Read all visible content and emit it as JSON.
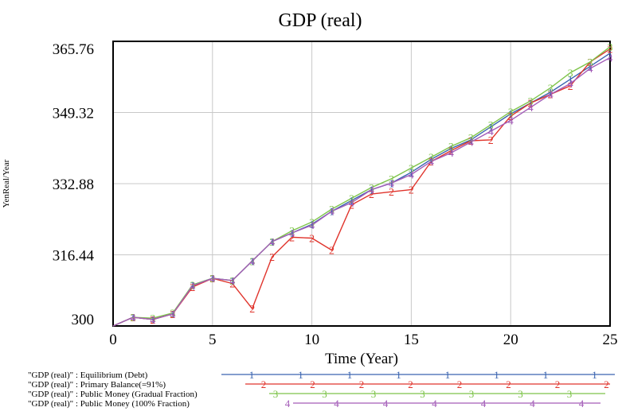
{
  "chart_data": {
    "type": "line",
    "title": "GDP (real)",
    "xlabel": "Time (Year)",
    "ylabel": "YenReal/Year",
    "xlim": [
      0,
      25
    ],
    "ylim": [
      300,
      365.76
    ],
    "x_ticks": [
      "0",
      "5",
      "10",
      "15",
      "20",
      "25"
    ],
    "y_ticks": [
      "300",
      "316.44",
      "332.88",
      "349.32",
      "365.76"
    ],
    "grid": true,
    "legend_placement": "bottom",
    "series": [
      {
        "name": "\"GDP (real)\" : Equilibrium (Debt)",
        "marker": "1",
        "color": "#3a64b0",
        "x": [
          0,
          1,
          2,
          3,
          4,
          5,
          6,
          7,
          8,
          9,
          10,
          11,
          12,
          13,
          14,
          15,
          16,
          17,
          18,
          19,
          20,
          21,
          22,
          23,
          24,
          25
        ],
        "y": [
          300,
          302,
          301.5,
          302.8,
          309.5,
          311,
          310.5,
          315,
          319.5,
          321.5,
          323.5,
          326.5,
          329,
          331.5,
          333,
          335.5,
          338.5,
          341,
          343,
          346,
          349,
          351.5,
          354,
          357,
          360,
          363
        ]
      },
      {
        "name": "\"GDP (real)\" : Primary Balance(=91%)",
        "marker": "2",
        "color": "#e0342c",
        "x": [
          0,
          1,
          2,
          3,
          4,
          5,
          6,
          7,
          8,
          9,
          10,
          11,
          12,
          13,
          14,
          15,
          16,
          17,
          18,
          19,
          20,
          21,
          22,
          23,
          24,
          25
        ],
        "y": [
          300,
          302,
          301.5,
          302.8,
          309,
          311,
          309.8,
          304,
          316,
          320.5,
          320.3,
          317.5,
          328,
          330.5,
          331,
          331.5,
          338,
          340.5,
          342.8,
          343,
          348.5,
          351.5,
          353.5,
          355.5,
          361,
          364
        ]
      },
      {
        "name": "\"GDP (real)\" : Public Money (Gradual Fraction)",
        "marker": "3",
        "color": "#7ec44a",
        "x": [
          0,
          1,
          2,
          3,
          4,
          5,
          6,
          7,
          8,
          9,
          10,
          11,
          12,
          13,
          14,
          15,
          16,
          17,
          18,
          19,
          20,
          21,
          22,
          23,
          24,
          25
        ],
        "y": [
          300,
          302,
          301.8,
          303,
          309.5,
          311,
          310.5,
          315,
          319.5,
          322,
          324,
          327,
          329.5,
          332,
          334,
          336.5,
          339,
          341.5,
          343.5,
          346.5,
          349.5,
          352,
          355,
          358.5,
          361,
          364.5
        ]
      },
      {
        "name": "\"GDP (real)\" : Public Money (100% Fraction)",
        "marker": "4",
        "color": "#a35cb8",
        "x": [
          0,
          1,
          2,
          3,
          4,
          5,
          6,
          7,
          8,
          9,
          10,
          11,
          12,
          13,
          14,
          15,
          16,
          17,
          18,
          19,
          20,
          21,
          22,
          23,
          24,
          25
        ],
        "y": [
          300,
          302,
          301.5,
          302.8,
          309.3,
          311,
          310.5,
          315,
          319.5,
          321.5,
          323.3,
          326.5,
          328.5,
          331.5,
          333,
          335,
          338,
          340,
          342.5,
          345,
          347.5,
          350.5,
          353.5,
          356,
          359.5,
          362
        ]
      }
    ]
  }
}
